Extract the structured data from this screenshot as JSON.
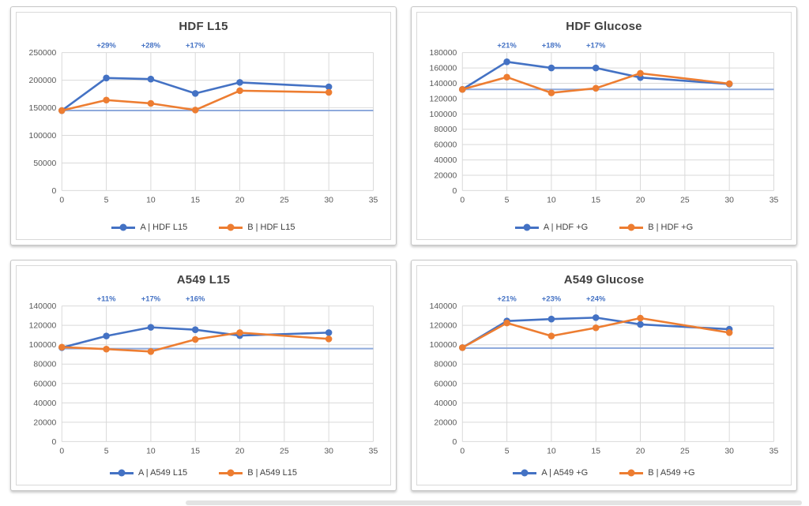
{
  "page": {
    "background": "#ffffff"
  },
  "colors": {
    "series_a": "#4472C4",
    "series_b": "#ED7D31",
    "baseline": "#8FAADC",
    "annotation": "#4472C4",
    "gridline": "#D9D9D9",
    "tick_text": "#595959",
    "title_text": "#404040"
  },
  "chart_data": [
    {
      "type": "line",
      "title": "HDF L15",
      "x": [
        0,
        5,
        10,
        15,
        20,
        30
      ],
      "xlim": [
        0,
        35
      ],
      "xticks": [
        0,
        5,
        10,
        15,
        20,
        25,
        30,
        35
      ],
      "ylim": [
        0,
        250000
      ],
      "ytick_step": 50000,
      "grid": true,
      "legend_position": "bottom",
      "series": [
        {
          "name": "A | HDF L15",
          "color": "#4472C4",
          "values": [
            145000,
            204000,
            202000,
            176000,
            196000,
            188000
          ]
        },
        {
          "name": "B | HDF L15",
          "color": "#ED7D31",
          "values": [
            145000,
            164000,
            158000,
            146000,
            181000,
            178000
          ]
        }
      ],
      "baseline": 145000,
      "annotations": [
        {
          "x": 5,
          "label": "+29%"
        },
        {
          "x": 10,
          "label": "+28%"
        },
        {
          "x": 15,
          "label": "+17%"
        }
      ]
    },
    {
      "type": "line",
      "title": "HDF Glucose",
      "x": [
        0,
        5,
        10,
        15,
        20,
        30
      ],
      "xlim": [
        0,
        35
      ],
      "xticks": [
        0,
        5,
        10,
        15,
        20,
        25,
        30,
        35
      ],
      "ylim": [
        0,
        180000
      ],
      "ytick_step": 20000,
      "grid": true,
      "legend_position": "bottom",
      "series": [
        {
          "name": "A | HDF +G",
          "color": "#4472C4",
          "values": [
            132000,
            168000,
            160000,
            160000,
            147500,
            139000
          ]
        },
        {
          "name": "B | HDF +G",
          "color": "#ED7D31",
          "values": [
            132000,
            148000,
            127500,
            133500,
            153000,
            139500
          ]
        }
      ],
      "baseline": 132000,
      "annotations": [
        {
          "x": 5,
          "label": "+21%"
        },
        {
          "x": 10,
          "label": "+18%"
        },
        {
          "x": 15,
          "label": "+17%"
        }
      ]
    },
    {
      "type": "line",
      "title": "A549 L15",
      "x": [
        0,
        5,
        10,
        15,
        20,
        30
      ],
      "xlim": [
        0,
        35
      ],
      "xticks": [
        0,
        5,
        10,
        15,
        20,
        25,
        30,
        35
      ],
      "ylim": [
        0,
        140000
      ],
      "ytick_step": 20000,
      "grid": true,
      "legend_position": "bottom",
      "series": [
        {
          "name": "A | A549 L15",
          "color": "#4472C4",
          "values": [
            97000,
            109000,
            118000,
            115500,
            109500,
            112500
          ]
        },
        {
          "name": "B | A549 L15",
          "color": "#ED7D31",
          "values": [
            97500,
            95500,
            93000,
            105500,
            112500,
            106000
          ]
        }
      ],
      "baseline": 96000,
      "annotations": [
        {
          "x": 5,
          "label": "+11%"
        },
        {
          "x": 10,
          "label": "+17%"
        },
        {
          "x": 15,
          "label": "+16%"
        }
      ]
    },
    {
      "type": "line",
      "title": "A549 Glucose",
      "x": [
        0,
        5,
        10,
        15,
        20,
        30
      ],
      "xlim": [
        0,
        35
      ],
      "xticks": [
        0,
        5,
        10,
        15,
        20,
        25,
        30,
        35
      ],
      "ylim": [
        0,
        140000
      ],
      "ytick_step": 20000,
      "grid": true,
      "legend_position": "bottom",
      "series": [
        {
          "name": "A | A549 +G",
          "color": "#4472C4",
          "values": [
            97000,
            124500,
            126500,
            128000,
            121000,
            116000
          ]
        },
        {
          "name": "B | A549 +G",
          "color": "#ED7D31",
          "values": [
            97000,
            122500,
            109000,
            117500,
            127500,
            112500
          ]
        }
      ],
      "baseline": 96500,
      "annotations": [
        {
          "x": 5,
          "label": "+21%"
        },
        {
          "x": 10,
          "label": "+23%"
        },
        {
          "x": 15,
          "label": "+24%"
        }
      ]
    }
  ]
}
